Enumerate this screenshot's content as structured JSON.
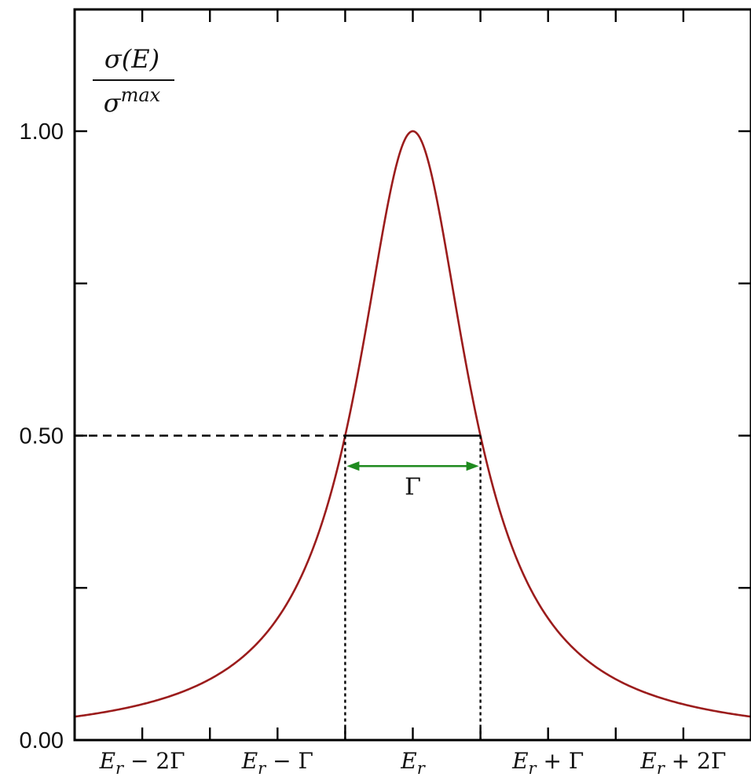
{
  "chart_data": {
    "type": "line",
    "title": "",
    "xlabel": "",
    "ylabel": {
      "numerator": "σ(E)",
      "denominator_base": "σ",
      "denominator_sup": "max"
    },
    "x_units": "Γ offset from E_r",
    "xlim": [
      -2.5,
      2.5
    ],
    "ylim": [
      0.0,
      1.2
    ],
    "x_ticks": [
      {
        "value": -2,
        "base": "E",
        "sub": "r",
        "suffix": " − 2Γ"
      },
      {
        "value": -1,
        "base": "E",
        "sub": "r",
        "suffix": " − Γ"
      },
      {
        "value": 0,
        "base": "E",
        "sub": "r",
        "suffix": ""
      },
      {
        "value": 1,
        "base": "E",
        "sub": "r",
        "suffix": " + Γ"
      },
      {
        "value": 2,
        "base": "E",
        "sub": "r",
        "suffix": " + 2Γ"
      }
    ],
    "y_ticks": [
      {
        "value": 0.0,
        "label": "0.00"
      },
      {
        "value": 0.5,
        "label": "0.50"
      },
      {
        "value": 1.0,
        "label": "1.00"
      }
    ],
    "y_minor_ticks": [
      0.25,
      0.75
    ],
    "x_minor_ticks": [
      -1.5,
      -0.5,
      0.5,
      1.5
    ],
    "series": [
      {
        "function": "lorentzian",
        "center": 0,
        "fwhm": 1,
        "peak": 1.0,
        "color": "#9b1c1c"
      }
    ],
    "annotations": {
      "half_max_value": 0.5,
      "half_max_left": -0.5,
      "half_max_right": 0.5,
      "width_arrow_y": 0.45,
      "width_label": "Γ",
      "arrow_color": "#1e8a1e",
      "guide_color": "#000000"
    },
    "grid": false,
    "legend": "none"
  }
}
